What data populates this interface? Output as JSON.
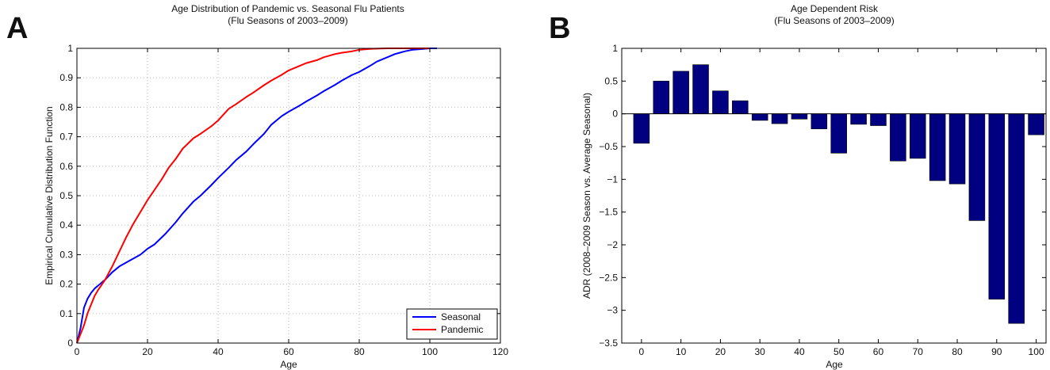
{
  "panels": {
    "a": {
      "letter": "A",
      "title_line1": "Age Distribution of Pandemic vs. Seasonal Flu Patients",
      "title_line2": "(Flu Seasons of 2003–2009)"
    },
    "b": {
      "letter": "B",
      "title_line1": "Age Dependent Risk",
      "title_line2": "(Flu Seasons of 2003–2009)"
    }
  },
  "chart_data": [
    {
      "type": "line",
      "title": "Age Distribution of Pandemic vs. Seasonal Flu Patients (Flu Seasons of 2003–2009)",
      "xlabel": "Age",
      "ylabel": "Empirical Cumulative Distribution Function",
      "xlim": [
        0,
        120
      ],
      "ylim": [
        0,
        1
      ],
      "xticks": [
        "0",
        "20",
        "40",
        "60",
        "80",
        "100",
        "120"
      ],
      "yticks": [
        "0",
        "0.1",
        "0.2",
        "0.3",
        "0.4",
        "0.5",
        "0.6",
        "0.7",
        "0.8",
        "0.9",
        "1"
      ],
      "grid": true,
      "legend_position": "bottom-right",
      "series": [
        {
          "name": "Seasonal",
          "color": "#0000ff",
          "x": [
            0,
            1,
            2,
            3,
            4,
            5,
            6,
            8,
            10,
            12,
            15,
            18,
            20,
            22,
            25,
            28,
            30,
            33,
            35,
            38,
            40,
            43,
            45,
            48,
            50,
            53,
            55,
            58,
            60,
            63,
            65,
            68,
            70,
            73,
            75,
            78,
            80,
            83,
            85,
            88,
            90,
            93,
            95,
            98,
            100,
            102
          ],
          "y": [
            0,
            0.05,
            0.12,
            0.15,
            0.17,
            0.185,
            0.195,
            0.215,
            0.24,
            0.26,
            0.28,
            0.3,
            0.32,
            0.335,
            0.37,
            0.41,
            0.44,
            0.48,
            0.5,
            0.535,
            0.56,
            0.595,
            0.62,
            0.65,
            0.675,
            0.71,
            0.74,
            0.77,
            0.785,
            0.805,
            0.82,
            0.84,
            0.855,
            0.875,
            0.89,
            0.91,
            0.92,
            0.94,
            0.955,
            0.97,
            0.98,
            0.99,
            0.995,
            0.998,
            1,
            1
          ]
        },
        {
          "name": "Pandemic",
          "color": "#ff0000",
          "x": [
            0,
            1,
            2,
            3,
            4,
            5,
            6,
            8,
            10,
            12,
            14,
            16,
            18,
            20,
            22,
            24,
            26,
            28,
            30,
            33,
            35,
            38,
            40,
            43,
            45,
            48,
            50,
            53,
            55,
            58,
            60,
            63,
            65,
            68,
            70,
            73,
            75,
            78,
            80,
            83,
            85,
            88,
            90,
            93,
            95,
            98,
            100
          ],
          "y": [
            0,
            0.03,
            0.06,
            0.1,
            0.13,
            0.16,
            0.18,
            0.215,
            0.26,
            0.31,
            0.36,
            0.405,
            0.445,
            0.485,
            0.52,
            0.555,
            0.595,
            0.625,
            0.66,
            0.695,
            0.71,
            0.735,
            0.755,
            0.795,
            0.81,
            0.835,
            0.85,
            0.875,
            0.89,
            0.91,
            0.925,
            0.94,
            0.95,
            0.96,
            0.97,
            0.98,
            0.985,
            0.99,
            0.995,
            0.998,
            0.999,
            1,
            1,
            1,
            1,
            1,
            1
          ]
        }
      ]
    },
    {
      "type": "bar",
      "title": "Age Dependent Risk (Flu Seasons of 2003–2009)",
      "xlabel": "Age",
      "ylabel": "ADR (2008–2009 Season vs. Average Seasonal)",
      "xlim": [
        -5,
        102.5
      ],
      "ylim": [
        -3.5,
        1
      ],
      "xticks": [
        "0",
        "10",
        "20",
        "30",
        "40",
        "50",
        "60",
        "70",
        "80",
        "90",
        "100"
      ],
      "yticks": [
        "−3.5",
        "−3",
        "−2.5",
        "−2",
        "−1.5",
        "−1",
        "−0.5",
        "0",
        "0.5",
        "1"
      ],
      "grid": false,
      "color": "#000080",
      "x": [
        0,
        5,
        10,
        15,
        20,
        25,
        30,
        35,
        40,
        45,
        50,
        55,
        60,
        65,
        70,
        75,
        80,
        85,
        90,
        95,
        100
      ],
      "values": [
        -0.45,
        0.5,
        0.65,
        0.75,
        0.35,
        0.2,
        -0.1,
        -0.15,
        -0.08,
        -0.23,
        -0.6,
        -0.16,
        -0.18,
        -0.72,
        -0.68,
        -1.02,
        -1.07,
        -1.63,
        -2.83,
        -3.2,
        -0.32
      ]
    }
  ]
}
